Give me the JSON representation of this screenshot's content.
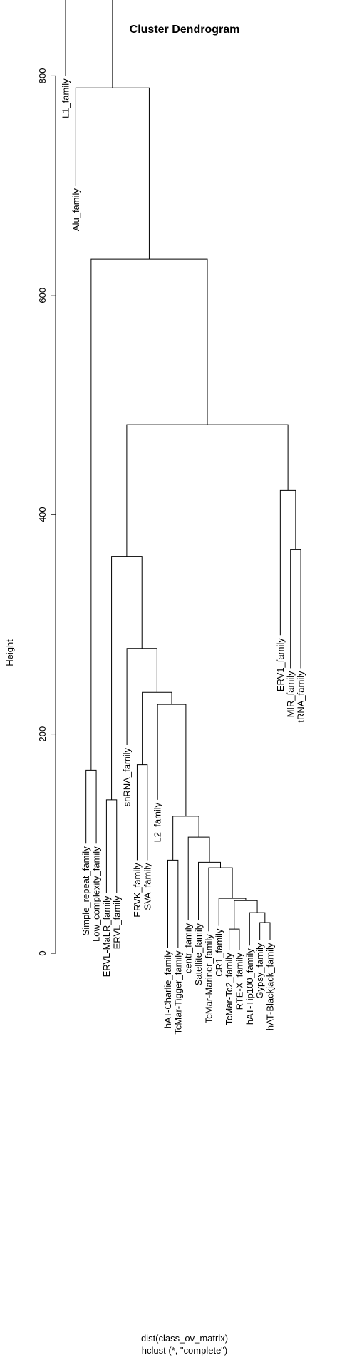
{
  "chart_data": {
    "type": "dendrogram",
    "title": "Cluster Dendrogram",
    "ylabel": "Height",
    "xlabel_lines": [
      "dist(class_ov_matrix)",
      "hclust (*, \"complete\")"
    ],
    "ylim": [
      0,
      925
    ],
    "y_ticks": [
      0,
      200,
      400,
      600,
      800
    ],
    "leaves": [
      {
        "name": "L1_family",
        "height": 800
      },
      {
        "name": "Alu_family",
        "height": 700
      },
      {
        "name": "Simple_repeat_family",
        "height": 100
      },
      {
        "name": "Low_complexity_family",
        "height": 100
      },
      {
        "name": "ERVL-MaLR_family",
        "height": 55
      },
      {
        "name": "ERVL_family",
        "height": 55
      },
      {
        "name": "snRNA_family",
        "height": 190
      },
      {
        "name": "ERVK_family",
        "height": 85
      },
      {
        "name": "SVA_family",
        "height": 85
      },
      {
        "name": "L2_family",
        "height": 140
      },
      {
        "name": "hAT-Charlie_family",
        "height": 5
      },
      {
        "name": "TcMar-Tigger_family",
        "height": 5
      },
      {
        "name": "centr_family",
        "height": 30
      },
      {
        "name": "Satellite_family",
        "height": 30
      },
      {
        "name": "TcMar-Mariner_family",
        "height": 20
      },
      {
        "name": "CR1_family",
        "height": 25
      },
      {
        "name": "TcMar-Tc2_family",
        "height": 3
      },
      {
        "name": "RTE-X_family",
        "height": 3
      },
      {
        "name": "hAT-Tip100_family",
        "height": 7
      },
      {
        "name": "Gypsy_family",
        "height": 12
      },
      {
        "name": "hAT-Blackjack_family",
        "height": 12
      },
      {
        "name": "ERV1_family",
        "height": 290
      },
      {
        "name": "MIR_family",
        "height": 260
      },
      {
        "name": "tRNA_family",
        "height": 260
      }
    ],
    "merges": [
      {
        "left": "TcMar-Tc2_family",
        "right": "RTE-X_family",
        "height": 22
      },
      {
        "left": "Gypsy_family",
        "right": "hAT-Blackjack_family",
        "height": 28
      },
      {
        "left": "hAT-Tip100_family",
        "right": 1,
        "height": 37
      },
      {
        "left": 0,
        "right": 2,
        "height": 48
      },
      {
        "left": "CR1_family",
        "right": 3,
        "height": 50
      },
      {
        "left": "TcMar-Mariner_family",
        "right": 4,
        "height": 78
      },
      {
        "left": "Satellite_family",
        "right": 5,
        "height": 83
      },
      {
        "left": "hAT-Charlie_family",
        "right": "TcMar-Tigger_family",
        "height": 85
      },
      {
        "left": "centr_family",
        "right": 6,
        "height": 106
      },
      {
        "left": 7,
        "right": 8,
        "height": 125
      },
      {
        "left": "ERVL-MaLR_family",
        "right": "ERVL_family",
        "height": 140
      },
      {
        "left": "Simple_repeat_family",
        "right": "Low_complexity_family",
        "height": 167
      },
      {
        "left": "ERVK_family",
        "right": "SVA_family",
        "height": 172
      },
      {
        "left": "L2_family",
        "right": 9,
        "height": 227
      },
      {
        "left": 12,
        "right": 13,
        "height": 238
      },
      {
        "left": "snRNA_family",
        "right": 14,
        "height": 278
      },
      {
        "left": 10,
        "right": 15,
        "height": 362
      },
      {
        "left": "MIR_family",
        "right": "tRNA_family",
        "height": 368
      },
      {
        "left": "ERV1_family",
        "right": 17,
        "height": 422
      },
      {
        "left": 16,
        "right": 18,
        "height": 482
      },
      {
        "left": 11,
        "right": 19,
        "height": 633
      },
      {
        "left": "Alu_family",
        "right": 20,
        "height": 789
      },
      {
        "left": "L1_family",
        "right": 21,
        "height": 880
      }
    ]
  }
}
